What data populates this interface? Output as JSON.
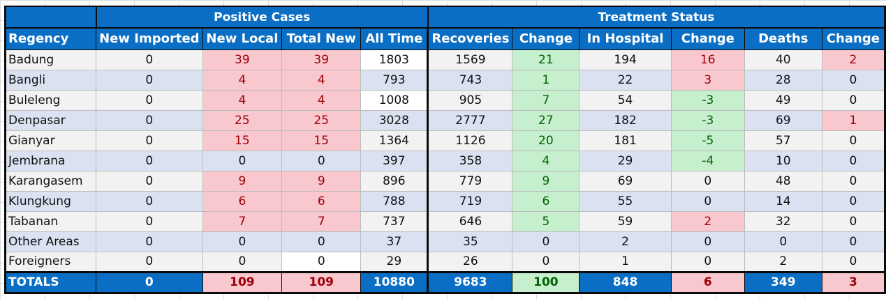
{
  "headers": {
    "group_positive": "Positive Cases",
    "group_treatment": "Treatment Status",
    "columns": [
      "Regency",
      "New Imported",
      "New Local",
      "Total New",
      "All Time",
      "Recoveries",
      "Change",
      "In Hospital",
      "Change",
      "Deaths",
      "Change"
    ]
  },
  "rows": [
    {
      "name": "Badung",
      "new_imported": "0",
      "new_local": "39",
      "total_new": "39",
      "all_time": "1803",
      "recoveries": "1569",
      "rec_change": "21",
      "in_hospital": "194",
      "hosp_change": "16",
      "deaths": "40",
      "death_change": "2"
    },
    {
      "name": "Bangli",
      "new_imported": "0",
      "new_local": "4",
      "total_new": "4",
      "all_time": "793",
      "recoveries": "743",
      "rec_change": "1",
      "in_hospital": "22",
      "hosp_change": "3",
      "deaths": "28",
      "death_change": "0"
    },
    {
      "name": "Buleleng",
      "new_imported": "0",
      "new_local": "4",
      "total_new": "4",
      "all_time": "1008",
      "recoveries": "905",
      "rec_change": "7",
      "in_hospital": "54",
      "hosp_change": "-3",
      "deaths": "49",
      "death_change": "0"
    },
    {
      "name": "Denpasar",
      "new_imported": "0",
      "new_local": "25",
      "total_new": "25",
      "all_time": "3028",
      "recoveries": "2777",
      "rec_change": "27",
      "in_hospital": "182",
      "hosp_change": "-3",
      "deaths": "69",
      "death_change": "1"
    },
    {
      "name": "Gianyar",
      "new_imported": "0",
      "new_local": "15",
      "total_new": "15",
      "all_time": "1364",
      "recoveries": "1126",
      "rec_change": "20",
      "in_hospital": "181",
      "hosp_change": "-5",
      "deaths": "57",
      "death_change": "0"
    },
    {
      "name": "Jembrana",
      "new_imported": "0",
      "new_local": "0",
      "total_new": "0",
      "all_time": "397",
      "recoveries": "358",
      "rec_change": "4",
      "in_hospital": "29",
      "hosp_change": "-4",
      "deaths": "10",
      "death_change": "0"
    },
    {
      "name": "Karangasem",
      "new_imported": "0",
      "new_local": "9",
      "total_new": "9",
      "all_time": "896",
      "recoveries": "779",
      "rec_change": "9",
      "in_hospital": "69",
      "hosp_change": "0",
      "deaths": "48",
      "death_change": "0"
    },
    {
      "name": "Klungkung",
      "new_imported": "0",
      "new_local": "6",
      "total_new": "6",
      "all_time": "788",
      "recoveries": "719",
      "rec_change": "6",
      "in_hospital": "55",
      "hosp_change": "0",
      "deaths": "14",
      "death_change": "0"
    },
    {
      "name": "Tabanan",
      "new_imported": "0",
      "new_local": "7",
      "total_new": "7",
      "all_time": "737",
      "recoveries": "646",
      "rec_change": "5",
      "in_hospital": "59",
      "hosp_change": "2",
      "deaths": "32",
      "death_change": "0"
    },
    {
      "name": "Other Areas",
      "new_imported": "0",
      "new_local": "0",
      "total_new": "0",
      "all_time": "37",
      "recoveries": "35",
      "rec_change": "0",
      "in_hospital": "2",
      "hosp_change": "0",
      "deaths": "0",
      "death_change": "0"
    },
    {
      "name": "Foreigners",
      "new_imported": "0",
      "new_local": "0",
      "total_new": "0",
      "all_time": "29",
      "recoveries": "26",
      "rec_change": "0",
      "in_hospital": "1",
      "hosp_change": "0",
      "deaths": "2",
      "death_change": "0"
    }
  ],
  "totals": {
    "name": "TOTALS",
    "new_imported": "0",
    "new_local": "109",
    "total_new": "109",
    "all_time": "10880",
    "recoveries": "9683",
    "rec_change": "100",
    "in_hospital": "848",
    "hosp_change": "6",
    "deaths": "349",
    "death_change": "3"
  },
  "colors": {
    "header_blue": "#0a6fc4",
    "increase_fill": "#f9c7ce",
    "increase_text": "#9c0006",
    "decrease_fill": "#c6efce",
    "decrease_text": "#006100",
    "row_even": "#f2f2f2",
    "row_odd": "#dae2f2"
  }
}
